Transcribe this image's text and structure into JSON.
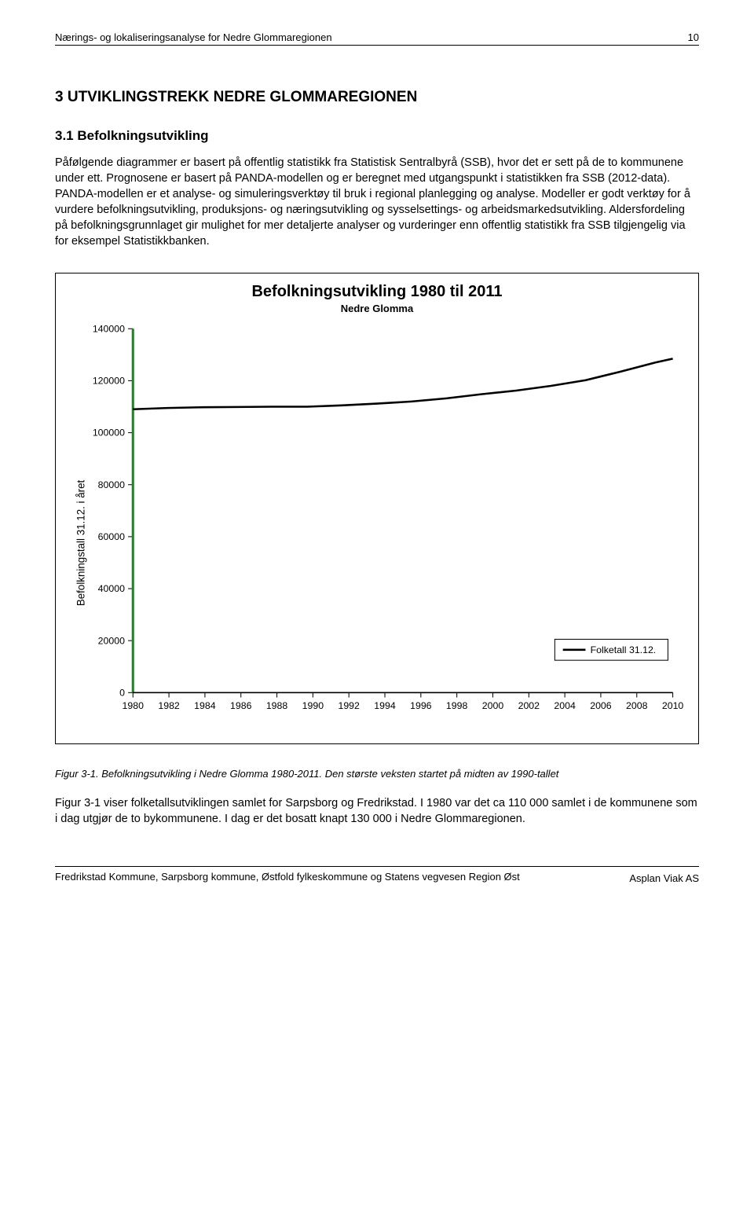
{
  "header": {
    "doc_title": "Nærings- og lokaliseringsanalyse for Nedre Glommaregionen",
    "page_number": "10"
  },
  "section": {
    "number_and_title": "3    UTVIKLINGSTREKK NEDRE GLOMMAREGIONEN",
    "sub_number_and_title": "3.1   Befolkningsutvikling",
    "paragraph": "Påfølgende diagrammer er basert på offentlig statistikk fra Statistisk Sentralbyrå (SSB), hvor det er sett på de to kommunene under ett. Prognosene er basert på PANDA-modellen og er beregnet med utgangspunkt i statistikken fra SSB (2012-data). PANDA-modellen er et analyse- og simuleringsverktøy til bruk i regional planlegging og analyse. Modeller er godt verktøy for å vurdere befolkningsutvikling, produksjons- og næringsutvikling og sysselsettings- og arbeidsmarkedsutvikling. Aldersfordeling på befolkningsgrunnlaget gir mulighet for mer detaljerte analyser og vurderinger enn offentlig statistikk fra SSB tilgjengelig via for eksempel Statistikkbanken."
  },
  "chart": {
    "type": "line",
    "title": "Befolkningsutvikling  1980 til 2011",
    "subtitle": "Nedre Glomma",
    "ylabel": "Befolkningstall 31.12. i året",
    "legend_label": "Folketall 31.12.",
    "xlim": [
      1980,
      2010
    ],
    "ylim": [
      0,
      140000
    ],
    "ytick_step": 20000,
    "yticks": [
      0,
      20000,
      40000,
      60000,
      80000,
      100000,
      120000,
      140000
    ],
    "xtick_step": 2,
    "xticks": [
      1980,
      1982,
      1984,
      1986,
      1988,
      1990,
      1992,
      1994,
      1996,
      1998,
      2000,
      2002,
      2004,
      2006,
      2008,
      2010
    ],
    "line_color": "#000000",
    "line_width": 2.5,
    "axis_color_left": "#2e7d32",
    "axis_color_bottom": "#000000",
    "axis_left_width": 3,
    "grid_on": false,
    "background_color": "#ffffff",
    "title_fontsize": 20,
    "subtitle_fontsize": 13,
    "ylabel_fontsize": 13,
    "tick_fontsize": 12,
    "legend_fontsize": 12,
    "years": [
      1980,
      1982,
      1984,
      1986,
      1988,
      1990,
      1992,
      1994,
      1996,
      1998,
      2000,
      2002,
      2004,
      2006,
      2008,
      2010,
      2011
    ],
    "values": [
      109000,
      109500,
      109800,
      109900,
      110000,
      110000,
      110500,
      111200,
      112000,
      113200,
      114800,
      116200,
      118000,
      120200,
      123500,
      127000,
      128500
    ]
  },
  "figure_caption": "Figur 3-1. Befolkningsutvikling i Nedre Glomma 1980-2011. Den største veksten startet på midten av 1990-tallet",
  "closing_paragraph": "Figur 3-1 viser folketallsutviklingen samlet for Sarpsborg og Fredrikstad. I 1980 var det ca 110 000 samlet i de kommunene som i dag utgjør de to bykommunene. I dag er det bosatt knapt 130 000 i Nedre Glommaregionen.",
  "footer": {
    "left": "Fredrikstad Kommune, Sarpsborg kommune, Østfold fylkeskommune og Statens vegvesen Region Øst",
    "right": "Asplan Viak AS"
  }
}
